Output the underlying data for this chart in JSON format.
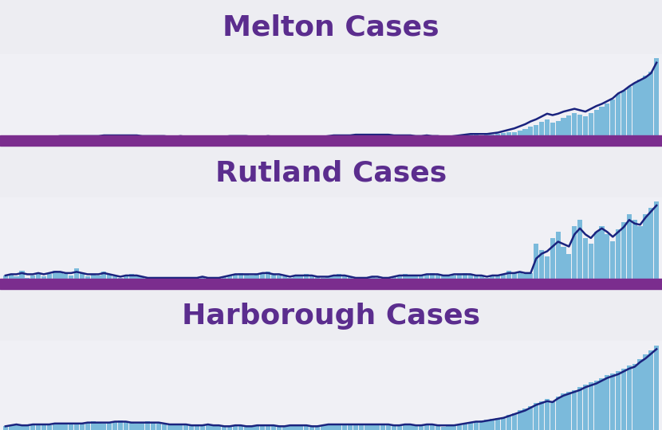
{
  "title_color": "#5B2D8E",
  "bar_color": "#6eb4d9",
  "line_color": "#1a237e",
  "divider_color": "#7B2D8E",
  "bg_color": "#ededf2",
  "panel_bg": "#f0f0f5",
  "titles": [
    "Melton Cases",
    "Rutland Cases",
    "Harborough Cases"
  ],
  "title_fontsize": 26,
  "melton_bars": [
    1,
    2,
    1,
    1,
    2,
    1,
    1,
    2,
    2,
    2,
    3,
    2,
    3,
    3,
    3,
    2,
    3,
    3,
    4,
    3,
    3,
    3,
    4,
    4,
    3,
    2,
    2,
    3,
    3,
    2,
    2,
    2,
    3,
    2,
    1,
    2,
    2,
    2,
    1,
    2,
    2,
    3,
    2,
    2,
    3,
    2,
    1,
    2,
    2,
    2,
    1,
    1,
    1,
    2,
    1,
    1,
    1,
    2,
    2,
    3,
    4,
    3,
    3,
    4,
    4,
    5,
    4,
    4,
    5,
    5,
    4,
    3,
    3,
    4,
    3,
    2,
    3,
    4,
    3,
    2,
    2,
    2,
    3,
    3,
    4,
    5,
    5,
    4,
    5,
    5,
    6,
    7,
    8,
    9,
    11,
    13,
    16,
    19,
    23,
    27,
    22,
    25,
    29,
    32,
    36,
    34,
    31,
    36,
    41,
    45,
    50,
    55,
    63,
    68,
    74,
    79,
    84,
    89,
    95,
    114
  ],
  "melton_line": [
    1,
    1,
    1,
    1,
    2,
    1,
    1,
    2,
    2,
    2,
    3,
    3,
    3,
    3,
    3,
    3,
    3,
    3,
    4,
    4,
    4,
    4,
    4,
    4,
    4,
    3,
    3,
    3,
    3,
    3,
    2,
    2,
    3,
    2,
    2,
    2,
    2,
    2,
    2,
    2,
    2,
    3,
    3,
    3,
    3,
    2,
    2,
    2,
    3,
    2,
    2,
    1,
    1,
    2,
    2,
    1,
    1,
    2,
    2,
    3,
    4,
    4,
    4,
    4,
    5,
    5,
    5,
    5,
    5,
    5,
    5,
    4,
    4,
    4,
    4,
    3,
    3,
    4,
    3,
    3,
    2,
    2,
    3,
    4,
    5,
    6,
    6,
    6,
    6,
    7,
    8,
    10,
    12,
    14,
    17,
    20,
    24,
    27,
    31,
    35,
    33,
    35,
    38,
    40,
    42,
    40,
    38,
    42,
    46,
    49,
    53,
    57,
    64,
    68,
    74,
    79,
    83,
    87,
    93,
    108
  ],
  "rutland_bars": [
    5,
    6,
    4,
    9,
    3,
    5,
    7,
    4,
    6,
    9,
    8,
    6,
    5,
    11,
    7,
    4,
    6,
    5,
    8,
    6,
    4,
    3,
    5,
    6,
    5,
    4,
    3,
    2,
    3,
    2,
    3,
    2,
    2,
    3,
    2,
    3,
    4,
    3,
    2,
    3,
    4,
    5,
    6,
    7,
    6,
    5,
    6,
    7,
    8,
    6,
    5,
    4,
    3,
    4,
    5,
    6,
    5,
    4,
    3,
    4,
    5,
    6,
    5,
    4,
    3,
    2,
    3,
    4,
    3,
    2,
    3,
    4,
    5,
    6,
    5,
    4,
    5,
    6,
    7,
    6,
    5,
    4,
    5,
    6,
    7,
    6,
    5,
    4,
    3,
    4,
    5,
    6,
    9,
    7,
    8,
    6,
    7,
    31,
    26,
    21,
    36,
    41,
    29,
    23,
    46,
    51,
    36,
    31,
    41,
    46,
    39,
    33,
    43,
    49,
    56,
    51,
    46,
    56,
    61,
    66
  ],
  "rutland_line": [
    5,
    6,
    6,
    7,
    6,
    6,
    7,
    6,
    7,
    8,
    8,
    7,
    7,
    8,
    7,
    6,
    6,
    6,
    7,
    6,
    5,
    4,
    5,
    5,
    5,
    4,
    3,
    3,
    3,
    3,
    3,
    3,
    3,
    3,
    3,
    3,
    4,
    3,
    3,
    3,
    4,
    5,
    6,
    6,
    6,
    6,
    6,
    7,
    7,
    6,
    6,
    5,
    4,
    5,
    5,
    5,
    5,
    4,
    4,
    4,
    5,
    5,
    5,
    4,
    3,
    3,
    3,
    4,
    4,
    3,
    3,
    4,
    5,
    5,
    5,
    5,
    5,
    6,
    6,
    6,
    5,
    5,
    6,
    6,
    6,
    6,
    5,
    5,
    4,
    5,
    5,
    6,
    7,
    7,
    8,
    7,
    7,
    19,
    23,
    25,
    29,
    33,
    31,
    29,
    39,
    44,
    39,
    36,
    41,
    44,
    41,
    37,
    41,
    45,
    51,
    48,
    47,
    53,
    58,
    63
  ],
  "harborough_bars": [
    4,
    5,
    6,
    4,
    5,
    6,
    7,
    6,
    5,
    6,
    7,
    8,
    7,
    6,
    7,
    8,
    9,
    8,
    7,
    8,
    9,
    10,
    9,
    8,
    7,
    8,
    9,
    8,
    7,
    6,
    5,
    6,
    7,
    6,
    5,
    4,
    5,
    6,
    5,
    4,
    3,
    4,
    5,
    4,
    3,
    4,
    5,
    6,
    5,
    4,
    3,
    4,
    5,
    6,
    5,
    4,
    3,
    4,
    5,
    6,
    7,
    6,
    5,
    6,
    7,
    6,
    5,
    6,
    7,
    6,
    5,
    4,
    5,
    6,
    5,
    4,
    5,
    6,
    5,
    4,
    3,
    4,
    5,
    6,
    7,
    8,
    9,
    10,
    11,
    12,
    13,
    14,
    16,
    18,
    21,
    23,
    26,
    29,
    31,
    33,
    31,
    36,
    39,
    41,
    43,
    46,
    49,
    51,
    53,
    56,
    59,
    61,
    63,
    66,
    69,
    71,
    76,
    81,
    86,
    91
  ],
  "harborough_line": [
    4,
    5,
    6,
    5,
    5,
    6,
    6,
    6,
    6,
    7,
    7,
    7,
    7,
    7,
    7,
    8,
    8,
    8,
    8,
    8,
    9,
    9,
    9,
    8,
    8,
    8,
    8,
    8,
    8,
    7,
    6,
    6,
    6,
    6,
    5,
    5,
    5,
    6,
    5,
    5,
    4,
    4,
    5,
    5,
    4,
    4,
    5,
    5,
    5,
    5,
    4,
    4,
    5,
    5,
    5,
    5,
    4,
    4,
    5,
    6,
    6,
    6,
    6,
    6,
    6,
    6,
    6,
    6,
    6,
    6,
    6,
    5,
    5,
    6,
    6,
    5,
    5,
    6,
    6,
    5,
    5,
    5,
    5,
    6,
    7,
    8,
    9,
    9,
    10,
    11,
    12,
    13,
    15,
    17,
    19,
    21,
    24,
    27,
    29,
    31,
    30,
    34,
    37,
    39,
    41,
    43,
    46,
    48,
    50,
    53,
    56,
    58,
    60,
    63,
    66,
    68,
    73,
    77,
    82,
    87
  ]
}
